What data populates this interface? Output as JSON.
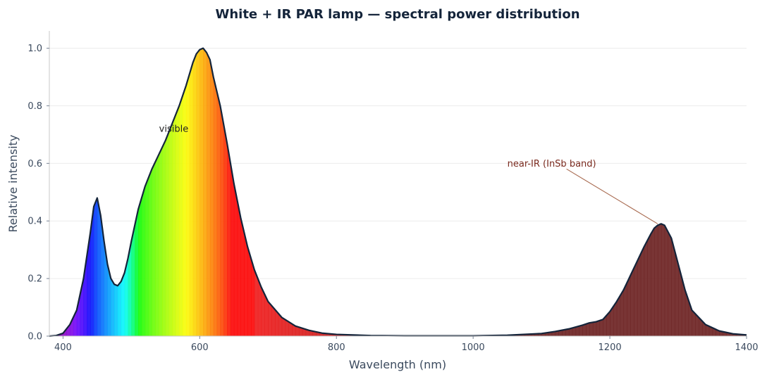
{
  "chart_data": {
    "type": "area",
    "title": "White + IR PAR lamp — spectral power distribution",
    "xlabel": "Wavelength (nm)",
    "ylabel": "Relative intensity",
    "xlim": [
      380,
      1400
    ],
    "ylim": [
      0,
      1.06
    ],
    "x_ticks": [
      400,
      600,
      800,
      1000,
      1200,
      1400
    ],
    "y_ticks": [
      0.0,
      0.2,
      0.4,
      0.6,
      0.8,
      1.0
    ],
    "x_tick_labels": [
      "400",
      "600",
      "800",
      "1000",
      "1200",
      "1400"
    ],
    "y_tick_labels": [
      "0.0",
      "0.2",
      "0.4",
      "0.6",
      "0.8",
      "1.0"
    ],
    "grid": "horizontal",
    "fill": "spectral",
    "series": [
      {
        "x": [
          380,
          390,
          400,
          410,
          420,
          430,
          440,
          445,
          450,
          455,
          460,
          465,
          470,
          475,
          480,
          485,
          490,
          495,
          500,
          510,
          520,
          530,
          540,
          550,
          560,
          570,
          580,
          590,
          595,
          600,
          605,
          610,
          615,
          620,
          630,
          640,
          650,
          660,
          670,
          680,
          690,
          700,
          720,
          740,
          760,
          780,
          800,
          850,
          900,
          950,
          1000,
          1050,
          1100,
          1120,
          1140,
          1160,
          1170,
          1180,
          1190,
          1200,
          1210,
          1220,
          1230,
          1240,
          1250,
          1260,
          1265,
          1270,
          1275,
          1280,
          1290,
          1300,
          1310,
          1320,
          1340,
          1360,
          1380,
          1400
        ],
        "y": [
          0.0,
          0.002,
          0.01,
          0.04,
          0.09,
          0.2,
          0.36,
          0.45,
          0.48,
          0.42,
          0.33,
          0.25,
          0.2,
          0.18,
          0.175,
          0.19,
          0.22,
          0.27,
          0.33,
          0.44,
          0.52,
          0.58,
          0.63,
          0.68,
          0.74,
          0.8,
          0.87,
          0.95,
          0.98,
          0.995,
          1.0,
          0.985,
          0.96,
          0.9,
          0.8,
          0.67,
          0.53,
          0.41,
          0.31,
          0.23,
          0.17,
          0.12,
          0.065,
          0.035,
          0.02,
          0.01,
          0.006,
          0.002,
          0.001,
          0.001,
          0.001,
          0.003,
          0.009,
          0.016,
          0.025,
          0.038,
          0.046,
          0.05,
          0.058,
          0.085,
          0.12,
          0.16,
          0.21,
          0.26,
          0.31,
          0.355,
          0.375,
          0.385,
          0.39,
          0.385,
          0.34,
          0.25,
          0.16,
          0.09,
          0.04,
          0.018,
          0.008,
          0.004
        ]
      }
    ],
    "annotations": [
      {
        "text": "visible",
        "x": 562,
        "y": 0.72,
        "color": "#222222"
      },
      {
        "text": "near-IR (InSb band)",
        "x": 1050,
        "y": 0.6,
        "color": "#7a2a1e",
        "arrow_to": [
          1270,
          0.39
        ]
      }
    ],
    "colors": {
      "outline": "#14243a",
      "ir_fill": "#6e2424",
      "grid": "#ececec",
      "axis": "#c8c8c8",
      "title": "#14243a",
      "arrow": "#a86a50"
    }
  }
}
